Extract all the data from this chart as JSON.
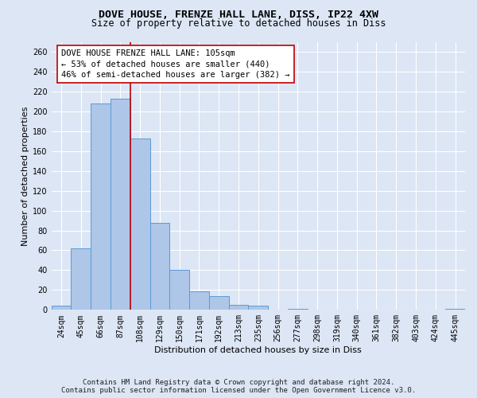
{
  "title_line1": "DOVE HOUSE, FRENZE HALL LANE, DISS, IP22 4XW",
  "title_line2": "Size of property relative to detached houses in Diss",
  "xlabel": "Distribution of detached houses by size in Diss",
  "ylabel": "Number of detached properties",
  "footer_line1": "Contains HM Land Registry data © Crown copyright and database right 2024.",
  "footer_line2": "Contains public sector information licensed under the Open Government Licence v3.0.",
  "annotation_line1": "DOVE HOUSE FRENZE HALL LANE: 105sqm",
  "annotation_line2": "← 53% of detached houses are smaller (440)",
  "annotation_line3": "46% of semi-detached houses are larger (382) →",
  "bar_categories": [
    "24sqm",
    "45sqm",
    "66sqm",
    "87sqm",
    "108sqm",
    "129sqm",
    "150sqm",
    "171sqm",
    "192sqm",
    "213sqm",
    "235sqm",
    "256sqm",
    "277sqm",
    "298sqm",
    "319sqm",
    "340sqm",
    "361sqm",
    "382sqm",
    "403sqm",
    "424sqm",
    "445sqm"
  ],
  "bar_values": [
    4,
    62,
    208,
    213,
    173,
    88,
    40,
    19,
    14,
    5,
    4,
    0,
    1,
    0,
    0,
    0,
    0,
    0,
    0,
    0,
    1
  ],
  "bar_color": "#aec6e8",
  "bar_edge_color": "#5b9bd5",
  "vline_color": "#c00000",
  "vline_x": 3.5,
  "ylim": [
    0,
    270
  ],
  "yticks": [
    0,
    20,
    40,
    60,
    80,
    100,
    120,
    140,
    160,
    180,
    200,
    220,
    240,
    260
  ],
  "background_color": "#dce6f5",
  "plot_bg_color": "#dce6f5",
  "annotation_box_facecolor": "#ffffff",
  "annotation_box_edgecolor": "#c00000",
  "title_fontsize": 9.5,
  "subtitle_fontsize": 8.5,
  "ylabel_fontsize": 8,
  "xlabel_fontsize": 8,
  "tick_fontsize": 7,
  "annotation_fontsize": 7.5,
  "footer_fontsize": 6.5
}
